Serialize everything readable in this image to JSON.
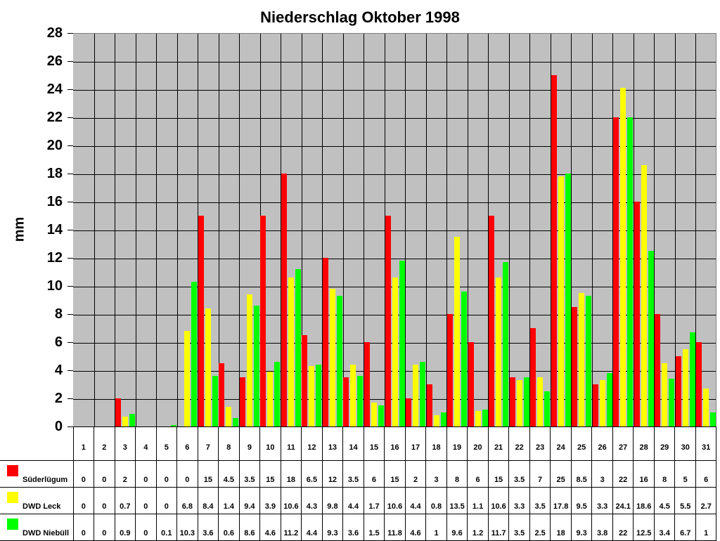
{
  "chart_data": {
    "type": "bar",
    "title": "Niederschlag Oktober 1998",
    "xlabel": "",
    "ylabel": "mm",
    "ylim": [
      0,
      28
    ],
    "yticks": [
      0,
      2,
      4,
      6,
      8,
      10,
      12,
      14,
      16,
      18,
      20,
      22,
      24,
      26,
      28
    ],
    "grid": true,
    "legend_position": "data-table",
    "categories": [
      "1",
      "2",
      "3",
      "4",
      "5",
      "6",
      "7",
      "8",
      "9",
      "10",
      "11",
      "12",
      "13",
      "14",
      "15",
      "16",
      "17",
      "18",
      "19",
      "20",
      "21",
      "22",
      "23",
      "24",
      "25",
      "26",
      "27",
      "28",
      "29",
      "30",
      "31"
    ],
    "series": [
      {
        "name": "Süderlügum",
        "color": "#ff0000",
        "values": [
          0,
          0,
          2,
          0,
          0,
          0,
          15,
          4.5,
          3.5,
          15,
          18,
          6.5,
          12,
          3.5,
          6,
          15,
          2,
          3,
          8,
          6,
          15,
          3.5,
          7,
          25,
          8.5,
          3,
          22,
          16,
          8,
          5,
          6
        ]
      },
      {
        "name": "DWD Leck",
        "color": "#ffff00",
        "values": [
          0,
          0,
          0.7,
          0,
          0,
          6.8,
          8.4,
          1.4,
          9.4,
          3.9,
          10.6,
          4.3,
          9.8,
          4.4,
          1.7,
          10.6,
          4.4,
          0.8,
          13.5,
          1.1,
          10.6,
          3.3,
          3.5,
          17.8,
          9.5,
          3.3,
          24.1,
          18.6,
          4.5,
          5.5,
          2.7
        ]
      },
      {
        "name": "DWD Niebüll",
        "color": "#00ff00",
        "values": [
          0,
          0,
          0.9,
          0,
          0.1,
          10.3,
          3.6,
          0.6,
          8.6,
          4.6,
          11.2,
          4.4,
          9.3,
          3.6,
          1.5,
          11.8,
          4.6,
          1,
          9.6,
          1.2,
          11.7,
          3.5,
          2.5,
          18,
          9.3,
          3.8,
          22,
          12.5,
          3.4,
          6.7,
          1
        ]
      }
    ]
  },
  "colors": {
    "plot_background": "#c0c0c0"
  }
}
